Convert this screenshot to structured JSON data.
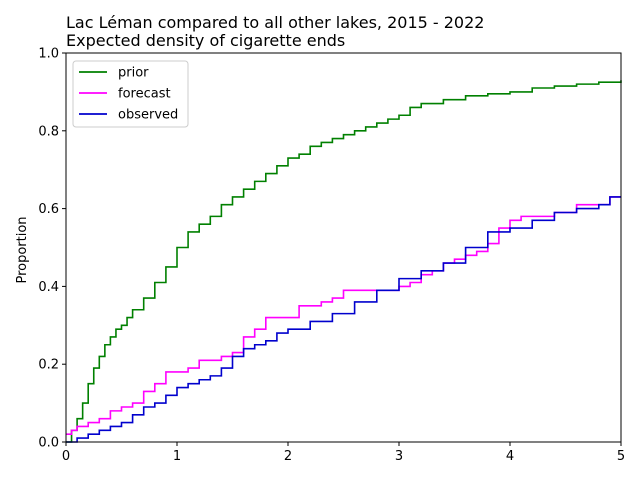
{
  "chart_data": {
    "type": "line",
    "title": "Lac Léman compared to all other lakes, 2015 - 2022",
    "subtitle": "Expected density of cigarette ends",
    "xlabel": "",
    "ylabel": "Proportion",
    "xlim": [
      0,
      5
    ],
    "ylim": [
      0,
      1
    ],
    "x_ticks": [
      "0",
      "1",
      "2",
      "3",
      "4",
      "5"
    ],
    "y_ticks": [
      "0.0",
      "0.2",
      "0.4",
      "0.6",
      "0.8",
      "1.0"
    ],
    "grid": false,
    "legend_position": "top-left",
    "series": [
      {
        "name": "prior",
        "color": "#008000",
        "x": [
          0,
          0.05,
          0.1,
          0.15,
          0.2,
          0.25,
          0.3,
          0.35,
          0.4,
          0.45,
          0.5,
          0.55,
          0.6,
          0.7,
          0.8,
          0.9,
          1.0,
          1.1,
          1.2,
          1.3,
          1.4,
          1.5,
          1.6,
          1.7,
          1.8,
          1.9,
          2.0,
          2.1,
          2.2,
          2.3,
          2.4,
          2.5,
          2.6,
          2.7,
          2.8,
          2.9,
          3.0,
          3.1,
          3.2,
          3.4,
          3.6,
          3.8,
          4.0,
          4.2,
          4.4,
          4.6,
          4.8,
          5.0
        ],
        "y": [
          0.0,
          0.03,
          0.06,
          0.1,
          0.15,
          0.19,
          0.22,
          0.25,
          0.27,
          0.29,
          0.3,
          0.32,
          0.34,
          0.37,
          0.41,
          0.45,
          0.5,
          0.54,
          0.56,
          0.58,
          0.61,
          0.63,
          0.65,
          0.67,
          0.69,
          0.71,
          0.73,
          0.74,
          0.76,
          0.77,
          0.78,
          0.79,
          0.8,
          0.81,
          0.82,
          0.83,
          0.84,
          0.86,
          0.87,
          0.88,
          0.89,
          0.895,
          0.9,
          0.91,
          0.915,
          0.92,
          0.925,
          0.93
        ]
      },
      {
        "name": "forecast",
        "color": "#ff00ff",
        "x": [
          0,
          0.05,
          0.1,
          0.2,
          0.3,
          0.4,
          0.5,
          0.6,
          0.7,
          0.8,
          0.9,
          1.1,
          1.2,
          1.4,
          1.5,
          1.6,
          1.7,
          1.8,
          2.1,
          2.3,
          2.4,
          2.5,
          3.0,
          3.1,
          3.2,
          3.3,
          3.4,
          3.5,
          3.6,
          3.7,
          3.8,
          3.9,
          4.0,
          4.1,
          4.3,
          4.4,
          4.6,
          4.9,
          5.0
        ],
        "y": [
          0.02,
          0.03,
          0.04,
          0.05,
          0.06,
          0.08,
          0.09,
          0.1,
          0.13,
          0.15,
          0.18,
          0.19,
          0.21,
          0.22,
          0.23,
          0.27,
          0.29,
          0.32,
          0.35,
          0.36,
          0.37,
          0.39,
          0.4,
          0.41,
          0.43,
          0.44,
          0.46,
          0.47,
          0.48,
          0.49,
          0.51,
          0.55,
          0.57,
          0.58,
          0.58,
          0.59,
          0.61,
          0.63,
          0.63
        ]
      },
      {
        "name": "observed",
        "color": "#0000cd",
        "x": [
          0,
          0.1,
          0.2,
          0.3,
          0.4,
          0.5,
          0.6,
          0.7,
          0.8,
          0.9,
          1.0,
          1.1,
          1.2,
          1.3,
          1.4,
          1.5,
          1.6,
          1.7,
          1.8,
          1.9,
          2.0,
          2.2,
          2.4,
          2.6,
          2.8,
          3.0,
          3.2,
          3.4,
          3.6,
          3.8,
          4.0,
          4.2,
          4.4,
          4.6,
          4.8,
          4.9,
          5.0
        ],
        "y": [
          0.0,
          0.01,
          0.02,
          0.03,
          0.04,
          0.05,
          0.07,
          0.09,
          0.1,
          0.12,
          0.14,
          0.15,
          0.16,
          0.17,
          0.19,
          0.22,
          0.24,
          0.25,
          0.26,
          0.28,
          0.29,
          0.31,
          0.33,
          0.36,
          0.39,
          0.42,
          0.44,
          0.46,
          0.5,
          0.54,
          0.55,
          0.57,
          0.59,
          0.6,
          0.61,
          0.63,
          0.63
        ]
      }
    ]
  }
}
